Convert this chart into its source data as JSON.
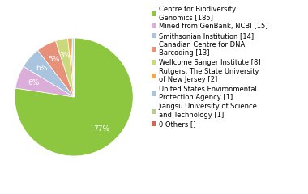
{
  "labels": [
    "Centre for Biodiversity\nGenomics [185]",
    "Mined from GenBank, NCBI [15]",
    "Smithsonian Institution [14]",
    "Canadian Centre for DNA\nBarcoding [13]",
    "Wellcome Sanger Institute [8]",
    "Rutgers, The State University\nof New Jersey [2]",
    "United States Environmental\nProtection Agency [1]",
    "Jiangsu University of Science\nand Technology [1]",
    "0 Others []"
  ],
  "values": [
    185,
    15,
    14,
    13,
    8,
    2,
    1,
    1,
    0
  ],
  "colors": [
    "#8dc63f",
    "#daaed8",
    "#a8c4de",
    "#e8917a",
    "#ccd87c",
    "#f4a84c",
    "#a8c4de",
    "#b8cc8c",
    "#cc6655"
  ],
  "figsize": [
    3.8,
    2.4
  ],
  "dpi": 100,
  "legend_fontsize": 6.0,
  "pct_fontsize": 6.5,
  "pct_threshold": 2.5
}
